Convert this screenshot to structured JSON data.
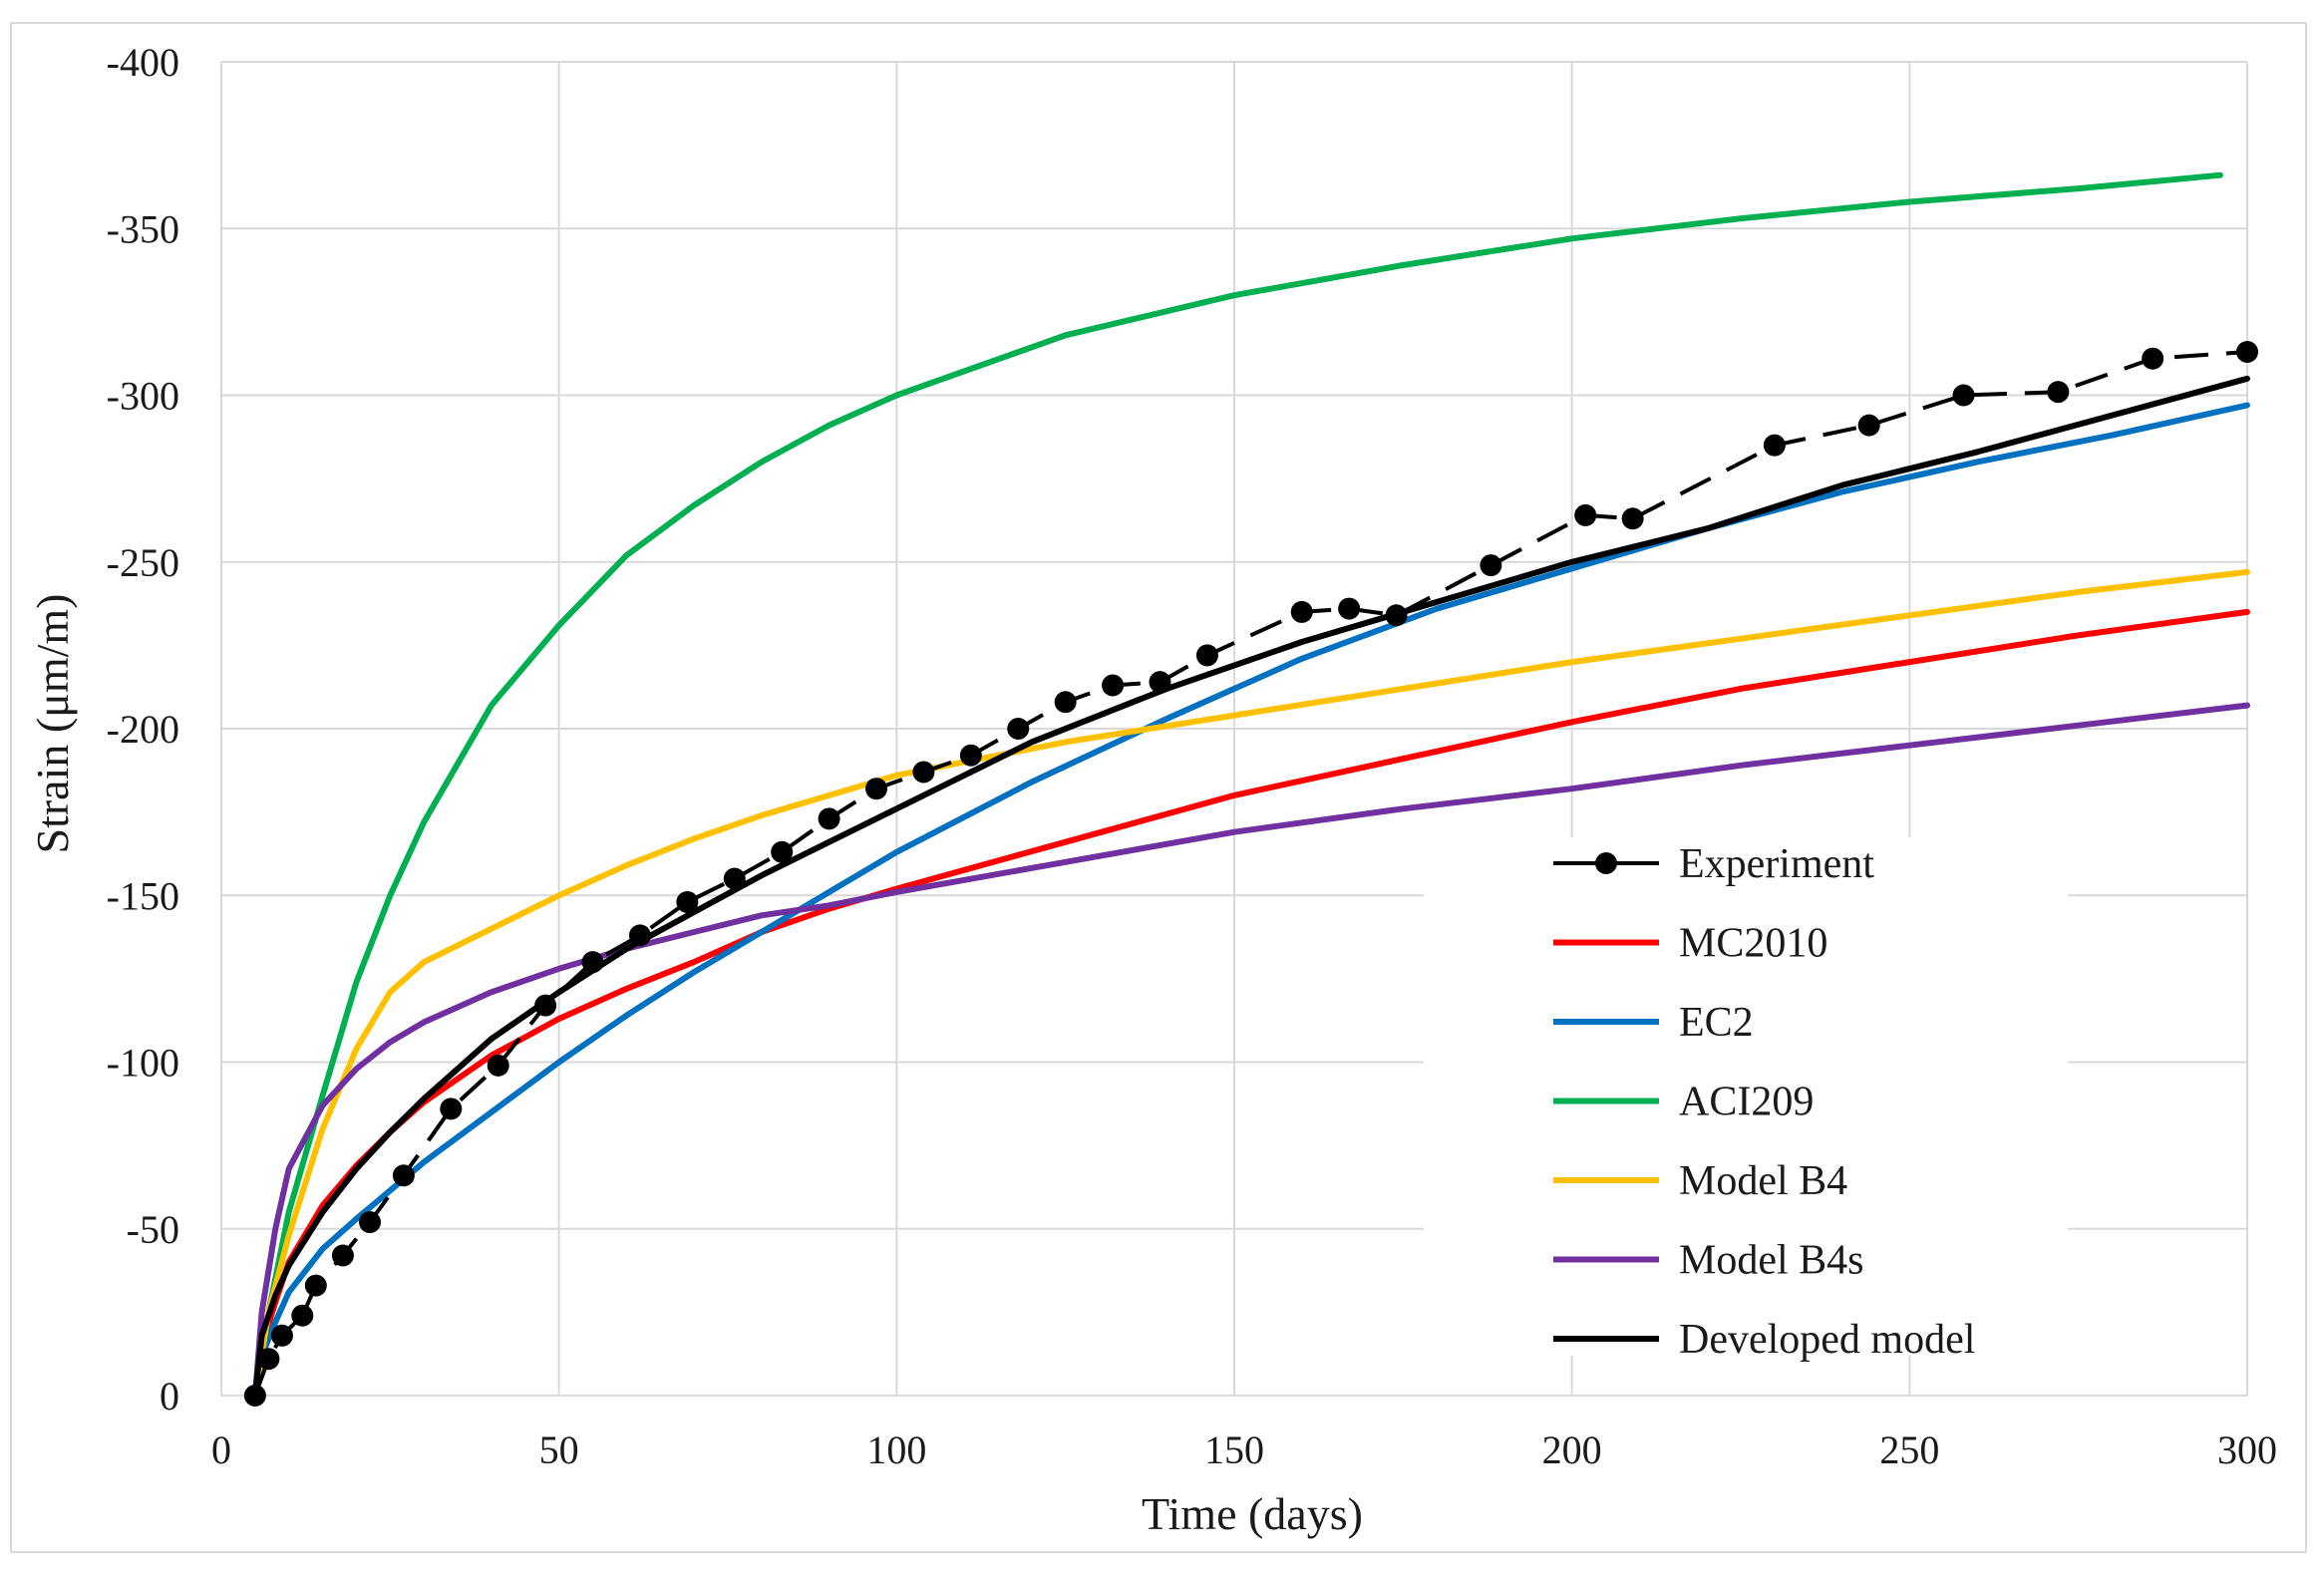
{
  "chart_data": {
    "type": "line",
    "title": "",
    "xlabel": "Time (days)",
    "ylabel": "Strain (μm/m)",
    "xlim": [
      0,
      300
    ],
    "ylim": [
      0,
      -400
    ],
    "x_ticks": [
      0,
      50,
      100,
      150,
      200,
      250,
      300
    ],
    "y_ticks": [
      0,
      -50,
      -100,
      -150,
      -200,
      -250,
      -300,
      -350,
      -400
    ],
    "x_tick_labels": [
      "0",
      "50",
      "100",
      "150",
      "200",
      "250",
      "300"
    ],
    "y_tick_labels": [
      "0",
      "-50",
      "-100",
      "-150",
      "-200",
      "-250",
      "-300",
      "-350",
      "-400"
    ],
    "grid": true,
    "legend_position": "bottom-right",
    "series": [
      {
        "name": "Experiment",
        "color": "#000000",
        "style": "dashed-markers",
        "points": [
          [
            5,
            0
          ],
          [
            7,
            -11
          ],
          [
            9,
            -18
          ],
          [
            12,
            -24
          ],
          [
            14,
            -33
          ],
          [
            18,
            -42
          ],
          [
            22,
            -52
          ],
          [
            27,
            -66
          ],
          [
            34,
            -86
          ],
          [
            41,
            -99
          ],
          [
            48,
            -117
          ],
          [
            55,
            -130
          ],
          [
            62,
            -138
          ],
          [
            69,
            -148
          ],
          [
            76,
            -155
          ],
          [
            83,
            -163
          ],
          [
            90,
            -173
          ],
          [
            97,
            -182
          ],
          [
            104,
            -187
          ],
          [
            111,
            -192
          ],
          [
            118,
            -200
          ],
          [
            125,
            -208
          ],
          [
            132,
            -213
          ],
          [
            139,
            -214
          ],
          [
            146,
            -222
          ],
          [
            160,
            -235
          ],
          [
            167,
            -236
          ],
          [
            174,
            -234
          ],
          [
            188,
            -249
          ],
          [
            202,
            -264
          ],
          [
            209,
            -263
          ],
          [
            230,
            -285
          ],
          [
            244,
            -291
          ],
          [
            258,
            -300
          ],
          [
            272,
            -301
          ],
          [
            286,
            -311
          ],
          [
            300,
            -313
          ]
        ]
      },
      {
        "name": "MC2010",
        "color": "#ff0000",
        "style": "solid",
        "points": [
          [
            5,
            0
          ],
          [
            6,
            -15
          ],
          [
            8,
            -28
          ],
          [
            10,
            -40
          ],
          [
            15,
            -57
          ],
          [
            20,
            -69
          ],
          [
            25,
            -79
          ],
          [
            30,
            -88
          ],
          [
            40,
            -102
          ],
          [
            50,
            -113
          ],
          [
            60,
            -122
          ],
          [
            70,
            -130
          ],
          [
            80,
            -139
          ],
          [
            90,
            -146
          ],
          [
            100,
            -152
          ],
          [
            125,
            -166
          ],
          [
            150,
            -180
          ],
          [
            175,
            -191
          ],
          [
            200,
            -202
          ],
          [
            225,
            -212
          ],
          [
            250,
            -220
          ],
          [
            275,
            -228
          ],
          [
            300,
            -235
          ]
        ]
      },
      {
        "name": "EC2",
        "color": "#0070c0",
        "style": "solid",
        "points": [
          [
            5,
            0
          ],
          [
            6,
            -12
          ],
          [
            8,
            -22
          ],
          [
            10,
            -31
          ],
          [
            15,
            -44
          ],
          [
            20,
            -53
          ],
          [
            30,
            -70
          ],
          [
            40,
            -85
          ],
          [
            50,
            -100
          ],
          [
            60,
            -114
          ],
          [
            70,
            -127
          ],
          [
            80,
            -139
          ],
          [
            90,
            -151
          ],
          [
            100,
            -163
          ],
          [
            120,
            -184
          ],
          [
            140,
            -203
          ],
          [
            160,
            -221
          ],
          [
            180,
            -236
          ],
          [
            200,
            -248
          ],
          [
            220,
            -260
          ],
          [
            240,
            -271
          ],
          [
            260,
            -280
          ],
          [
            280,
            -288
          ],
          [
            300,
            -297
          ]
        ]
      },
      {
        "name": "ACI209",
        "color": "#00b050",
        "style": "solid",
        "points": [
          [
            5,
            0
          ],
          [
            7,
            -25
          ],
          [
            10,
            -55
          ],
          [
            15,
            -90
          ],
          [
            20,
            -124
          ],
          [
            25,
            -150
          ],
          [
            30,
            -172
          ],
          [
            40,
            -207
          ],
          [
            50,
            -231
          ],
          [
            60,
            -252
          ],
          [
            70,
            -267
          ],
          [
            80,
            -280
          ],
          [
            90,
            -291
          ],
          [
            100,
            -300
          ],
          [
            125,
            -318
          ],
          [
            150,
            -330
          ],
          [
            175,
            -339
          ],
          [
            200,
            -347
          ],
          [
            225,
            -353
          ],
          [
            250,
            -358
          ],
          [
            275,
            -362
          ],
          [
            296,
            -366
          ]
        ]
      },
      {
        "name": "Model B4",
        "color": "#ffc000",
        "style": "solid",
        "points": [
          [
            5,
            0
          ],
          [
            7,
            -25
          ],
          [
            10,
            -48
          ],
          [
            15,
            -80
          ],
          [
            20,
            -104
          ],
          [
            25,
            -121
          ],
          [
            30,
            -130
          ],
          [
            40,
            -140
          ],
          [
            50,
            -150
          ],
          [
            60,
            -159
          ],
          [
            70,
            -167
          ],
          [
            80,
            -174
          ],
          [
            90,
            -180
          ],
          [
            100,
            -186
          ],
          [
            125,
            -196
          ],
          [
            150,
            -204
          ],
          [
            175,
            -212
          ],
          [
            200,
            -220
          ],
          [
            225,
            -227
          ],
          [
            250,
            -234
          ],
          [
            275,
            -241
          ],
          [
            300,
            -247
          ]
        ]
      },
      {
        "name": "Model B4s",
        "color": "#7030a0",
        "style": "solid",
        "points": [
          [
            5,
            0
          ],
          [
            6,
            -25
          ],
          [
            8,
            -50
          ],
          [
            10,
            -68
          ],
          [
            15,
            -87
          ],
          [
            20,
            -98
          ],
          [
            25,
            -106
          ],
          [
            30,
            -112
          ],
          [
            40,
            -121
          ],
          [
            50,
            -128
          ],
          [
            60,
            -134
          ],
          [
            70,
            -139
          ],
          [
            80,
            -144
          ],
          [
            90,
            -147
          ],
          [
            100,
            -151
          ],
          [
            125,
            -160
          ],
          [
            150,
            -169
          ],
          [
            175,
            -176
          ],
          [
            200,
            -182
          ],
          [
            225,
            -189
          ],
          [
            250,
            -195
          ],
          [
            275,
            -201
          ],
          [
            300,
            -207
          ]
        ]
      },
      {
        "name": "Developed model",
        "color": "#000000",
        "style": "solid",
        "points": [
          [
            5,
            0
          ],
          [
            6,
            -18
          ],
          [
            8,
            -30
          ],
          [
            10,
            -39
          ],
          [
            15,
            -55
          ],
          [
            20,
            -68
          ],
          [
            25,
            -79
          ],
          [
            30,
            -89
          ],
          [
            40,
            -107
          ],
          [
            50,
            -121
          ],
          [
            60,
            -134
          ],
          [
            70,
            -145
          ],
          [
            80,
            -156
          ],
          [
            90,
            -166
          ],
          [
            100,
            -176
          ],
          [
            120,
            -196
          ],
          [
            140,
            -212
          ],
          [
            160,
            -226
          ],
          [
            180,
            -238
          ],
          [
            200,
            -250
          ],
          [
            220,
            -260
          ],
          [
            240,
            -273
          ],
          [
            260,
            -283
          ],
          [
            280,
            -294
          ],
          [
            300,
            -305
          ]
        ]
      }
    ]
  }
}
